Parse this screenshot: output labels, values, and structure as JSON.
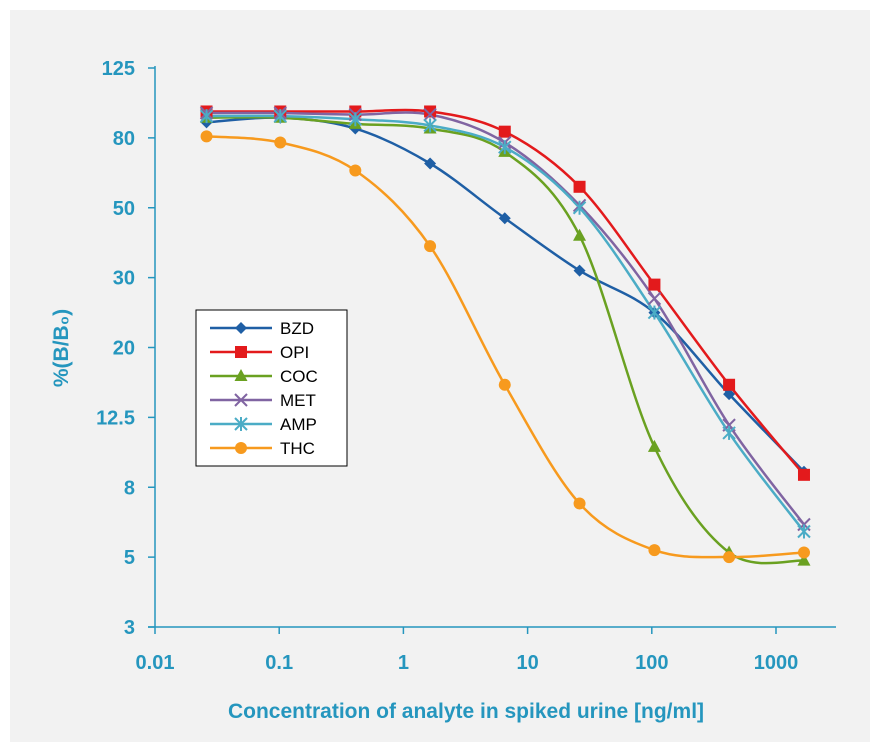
{
  "chart_data": {
    "type": "line",
    "title": "",
    "xlabel": "Concentration of analyte in spiked urine [ng/ml]",
    "ylabel": "%(B/B₀)",
    "x_scale": "log",
    "xlim": [
      0.01,
      5000
    ],
    "x_ticks": [
      "0.01",
      "0.1",
      "1",
      "10",
      "100",
      "1000"
    ],
    "y_ticks": [
      "3",
      "5",
      "8",
      "12.5",
      "20",
      "30",
      "50",
      "80",
      "125"
    ],
    "grid": false,
    "legend_position": "middle-left",
    "x": [
      0.026,
      0.102,
      0.41,
      1.64,
      6.55,
      26.2,
      105,
      419,
      1680
    ],
    "series": [
      {
        "name": "BZD",
        "color": "#1f5fa5",
        "marker": "diamond",
        "values": [
          90,
          93,
          86,
          69,
          47,
          32,
          25,
          15,
          9
        ]
      },
      {
        "name": "OPI",
        "color": "#e31a1c",
        "marker": "square",
        "values": [
          97,
          97,
          97,
          97,
          84,
          59,
          29,
          16,
          8.8
        ]
      },
      {
        "name": "COC",
        "color": "#6aa121",
        "marker": "triangle",
        "values": [
          93,
          93,
          89,
          86,
          74,
          42,
          10.6,
          5.2,
          4.9
        ]
      },
      {
        "name": "MET",
        "color": "#8064a2",
        "marker": "x",
        "values": [
          96,
          96,
          95,
          95,
          78,
          51,
          27,
          12,
          6.4
        ]
      },
      {
        "name": "AMP",
        "color": "#4bacc6",
        "marker": "star",
        "values": [
          94,
          94,
          92,
          88,
          76,
          50,
          25,
          11.5,
          6.1
        ]
      },
      {
        "name": "THC",
        "color": "#f79a1e",
        "marker": "circle",
        "values": [
          81,
          78,
          66,
          39,
          16,
          7.3,
          5.3,
          5.0,
          5.2
        ]
      }
    ]
  }
}
